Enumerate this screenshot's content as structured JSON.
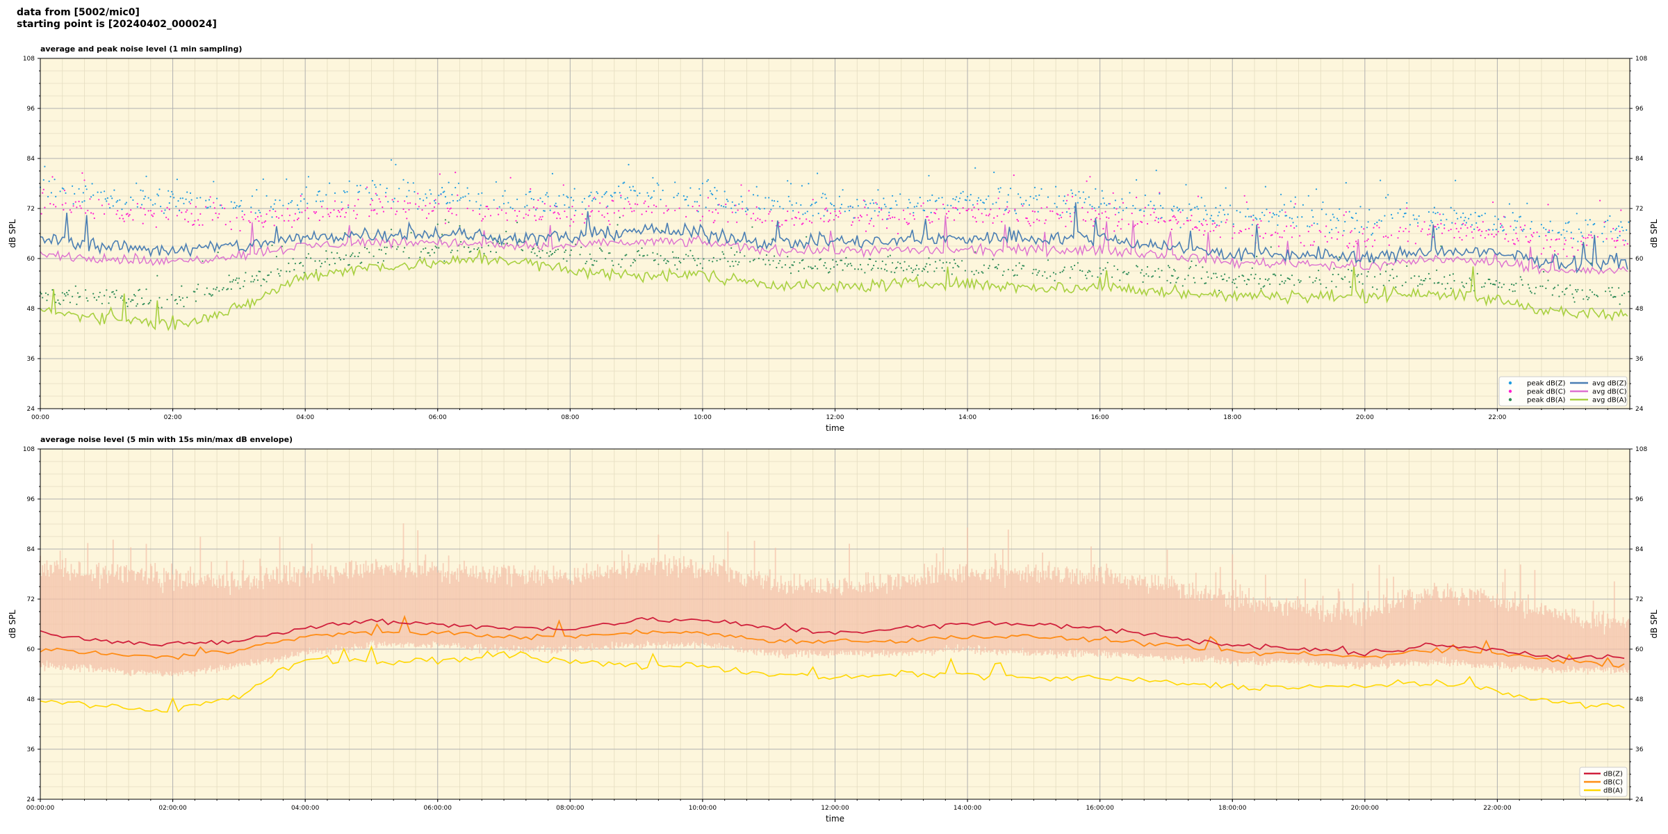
{
  "header": {
    "line1": "data from [5002/mic0]",
    "line2": "starting point is [20240402_000024]"
  },
  "colors": {
    "plot_bg": "#fdf6dc",
    "grid_major": "#b0b0b0",
    "grid_minor": "#e4dcc0",
    "peakZ": "#1f9be0",
    "peakC": "#ff1ecf",
    "peakA": "#2e8b57",
    "avgZ": "#4a7eb3",
    "avgC": "#dd70d0",
    "avgA": "#a8d040",
    "dbZ": "#d0203c",
    "dbC": "#ff8c14",
    "dbA": "#ffd700",
    "envelope": "#f4c0a8"
  },
  "chart_data": [
    {
      "type": "scatter+line",
      "title": "average and peak noise level (1 min sampling)",
      "xlabel": "time",
      "ylabel": "dB SPL",
      "xlim_hours": [
        0,
        24
      ],
      "ylim": [
        24,
        108
      ],
      "yticks": [
        24,
        36,
        48,
        60,
        72,
        84,
        96,
        108
      ],
      "xticks": [
        "00:00",
        "02:00",
        "04:00",
        "06:00",
        "08:00",
        "10:00",
        "12:00",
        "14:00",
        "16:00",
        "18:00",
        "20:00",
        "22:00"
      ],
      "grid": true,
      "legend": "lower-right",
      "keypoints_hours": [
        0,
        1,
        2,
        3,
        4,
        5,
        6,
        7,
        8,
        9,
        10,
        11,
        12,
        13,
        14,
        15,
        16,
        17,
        18,
        19,
        20,
        21,
        22,
        23,
        24
      ],
      "series": [
        {
          "name": "peak dB(Z)",
          "kind": "scatter",
          "values": [
            77,
            75,
            74,
            73,
            74,
            76,
            75,
            74,
            74,
            76,
            75,
            73,
            73,
            73,
            74,
            74,
            74,
            72,
            70,
            70,
            69,
            70,
            69,
            67,
            67
          ]
        },
        {
          "name": "peak dB(C)",
          "kind": "scatter",
          "values": [
            73,
            71,
            70,
            69,
            71,
            72,
            72,
            71,
            71,
            72,
            72,
            70,
            70,
            70,
            71,
            70,
            70,
            69,
            67,
            66,
            65,
            67,
            66,
            64,
            64
          ]
        },
        {
          "name": "peak dB(A)",
          "kind": "scatter",
          "values": [
            51,
            51,
            50,
            54,
            59,
            61,
            62,
            63,
            61,
            60,
            60,
            59,
            58,
            58,
            58,
            57,
            57,
            56,
            55,
            55,
            55,
            55,
            54,
            52,
            51
          ]
        },
        {
          "name": "avg dB(Z)",
          "kind": "line",
          "values": [
            65,
            63,
            62,
            63,
            65,
            66,
            66,
            65,
            65,
            67,
            66,
            64,
            64,
            64,
            65,
            65,
            65,
            63,
            61,
            61,
            60,
            62,
            61,
            59,
            59
          ]
        },
        {
          "name": "avg dB(C)",
          "kind": "line",
          "values": [
            61,
            60,
            59,
            61,
            63,
            64,
            64,
            63,
            63,
            64,
            64,
            62,
            62,
            62,
            62,
            62,
            62,
            61,
            59,
            59,
            58,
            60,
            59,
            57,
            57
          ]
        },
        {
          "name": "avg dB(A)",
          "kind": "line",
          "values": [
            47,
            46,
            44,
            48,
            56,
            58,
            59,
            60,
            57,
            56,
            56,
            54,
            53,
            54,
            54,
            53,
            53,
            52,
            51,
            51,
            51,
            52,
            50,
            47,
            46
          ]
        }
      ]
    },
    {
      "type": "line+area",
      "title": "average noise level (5 min with 15s min/max dB envelope)",
      "xlabel": "time",
      "ylabel": "dB SPL",
      "xlim_hours": [
        0,
        24
      ],
      "ylim": [
        24,
        108
      ],
      "yticks": [
        24,
        36,
        48,
        60,
        72,
        84,
        96,
        108
      ],
      "xticks": [
        "00:00:00",
        "02:00:00",
        "04:00:00",
        "06:00:00",
        "08:00:00",
        "10:00:00",
        "12:00:00",
        "14:00:00",
        "16:00:00",
        "18:00:00",
        "20:00:00",
        "22:00:00"
      ],
      "grid": true,
      "legend": "lower-right",
      "keypoints_hours": [
        0,
        1,
        2,
        3,
        4,
        5,
        6,
        7,
        8,
        9,
        10,
        11,
        12,
        13,
        14,
        15,
        16,
        17,
        18,
        19,
        20,
        21,
        22,
        23,
        24
      ],
      "series": [
        {
          "name": "dB(Z)",
          "values": [
            64,
            62,
            61,
            62,
            65,
            67,
            66,
            65,
            65,
            67,
            67,
            65,
            64,
            65,
            66,
            66,
            65,
            63,
            61,
            60,
            59,
            61,
            60,
            58,
            58
          ]
        },
        {
          "name": "dB(C)",
          "values": [
            60,
            59,
            58,
            60,
            63,
            64,
            64,
            63,
            63,
            64,
            64,
            62,
            62,
            62,
            63,
            63,
            62,
            61,
            59,
            59,
            58,
            60,
            59,
            57,
            56
          ]
        },
        {
          "name": "dB(A)",
          "values": [
            48,
            46,
            45,
            49,
            58,
            57,
            57,
            59,
            57,
            56,
            56,
            54,
            53,
            54,
            54,
            53,
            53,
            52,
            51,
            51,
            51,
            52,
            50,
            47,
            46
          ]
        },
        {
          "name": "envelope max",
          "values": [
            80,
            78,
            77,
            76,
            78,
            80,
            79,
            78,
            77,
            80,
            80,
            76,
            75,
            76,
            78,
            78,
            78,
            75,
            72,
            70,
            68,
            74,
            72,
            68,
            66
          ]
        },
        {
          "name": "envelope min",
          "values": [
            56,
            55,
            54,
            56,
            59,
            61,
            61,
            60,
            60,
            61,
            61,
            59,
            59,
            59,
            60,
            59,
            59,
            58,
            57,
            57,
            56,
            57,
            56,
            55,
            55
          ]
        }
      ]
    }
  ]
}
